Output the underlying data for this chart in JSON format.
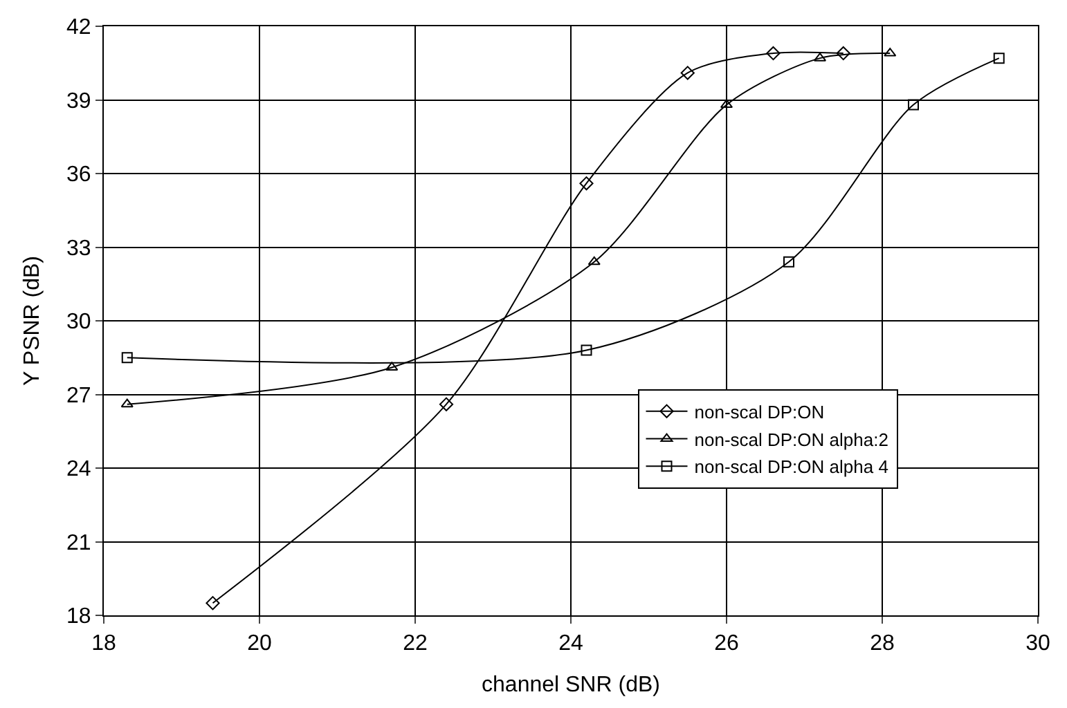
{
  "chart_data": {
    "type": "line",
    "xlabel": "channel SNR (dB)",
    "ylabel": "Y PSNR (dB)",
    "xlim": [
      18,
      30
    ],
    "xticks": [
      18,
      20,
      22,
      24,
      26,
      28,
      30
    ],
    "ylim": [
      18,
      42
    ],
    "yticks": [
      18,
      21,
      24,
      27,
      30,
      33,
      36,
      39,
      42
    ],
    "grid": true,
    "legend": "bottom right",
    "line_style": "solid",
    "series": [
      {
        "name": "non-scal DP:ON",
        "color": "#000000",
        "marker": "diamond",
        "x": [
          19.4,
          22.4,
          24.2,
          25.5,
          26.6,
          27.5
        ],
        "values": [
          18.5,
          26.6,
          35.6,
          40.1,
          40.9,
          40.9
        ]
      },
      {
        "name": "non-scal DP:ON alpha:2",
        "color": "#000000",
        "marker": "triangle",
        "x": [
          18.3,
          21.7,
          24.3,
          26.0,
          27.2,
          28.1
        ],
        "values": [
          26.6,
          28.1,
          32.4,
          38.8,
          40.7,
          40.9
        ]
      },
      {
        "name": "non-scal DP:ON alpha 4",
        "color": "#000000",
        "marker": "square",
        "x": [
          18.3,
          24.2,
          26.8,
          28.4,
          29.5
        ],
        "values": [
          28.5,
          28.8,
          32.4,
          38.8,
          40.7
        ]
      }
    ]
  }
}
